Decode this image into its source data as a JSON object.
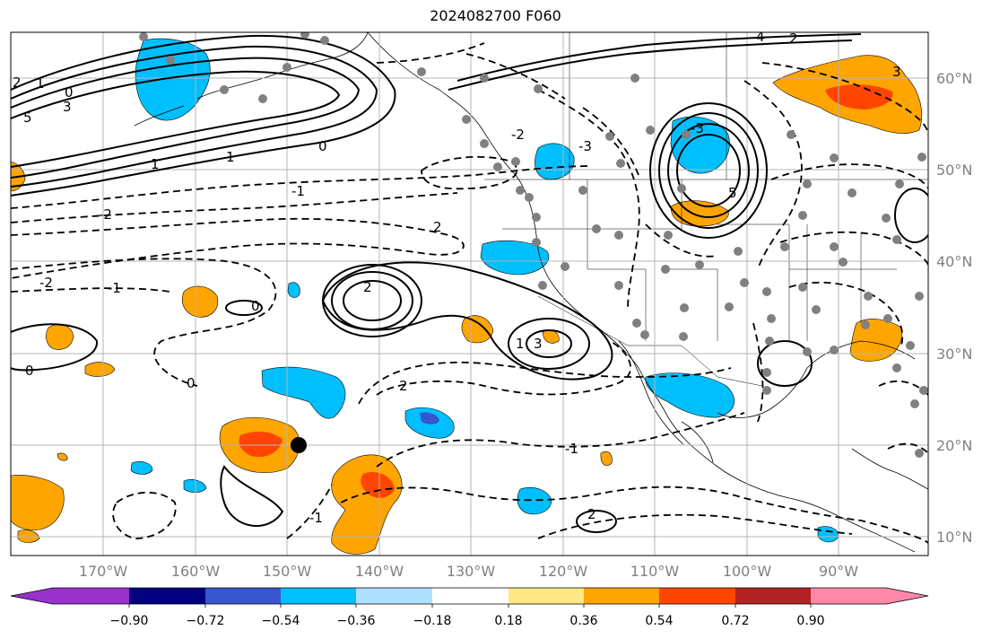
{
  "title": "2024082700 F060",
  "map": {
    "lon_range": [
      -180,
      -80
    ],
    "lat_range": [
      8,
      65
    ],
    "lon_ticks": [
      "170°W",
      "160°W",
      "150°W",
      "140°W",
      "130°W",
      "120°W",
      "110°W",
      "100°W",
      "90°W"
    ],
    "lat_ticks": [
      "10°N",
      "20°N",
      "30°N",
      "40°N",
      "50°N",
      "60°N"
    ],
    "grid": true,
    "contour_labels": [
      "2",
      "1",
      "0",
      "3",
      "5",
      "-2",
      "-1",
      "0",
      "2",
      "1",
      "3",
      "-1",
      "2",
      "-2",
      "-3",
      "0",
      "1",
      "2",
      "3",
      "4",
      "-1",
      "0",
      "2",
      "-2",
      "1",
      "0",
      "-1",
      "-3",
      "5",
      "2"
    ]
  },
  "colorbar": {
    "ticks": [
      "−0.90",
      "−0.72",
      "−0.54",
      "−0.36",
      "−0.18",
      "0.18",
      "0.36",
      "0.54",
      "0.72",
      "0.90"
    ],
    "colors": [
      "#9932cc",
      "#000080",
      "#3657cf",
      "#00bfff",
      "#b0e0ff",
      "#ffffff",
      "#ffe886",
      "#ffa500",
      "#ff4500",
      "#b22222",
      "#ff88aa"
    ],
    "extend": "both"
  }
}
